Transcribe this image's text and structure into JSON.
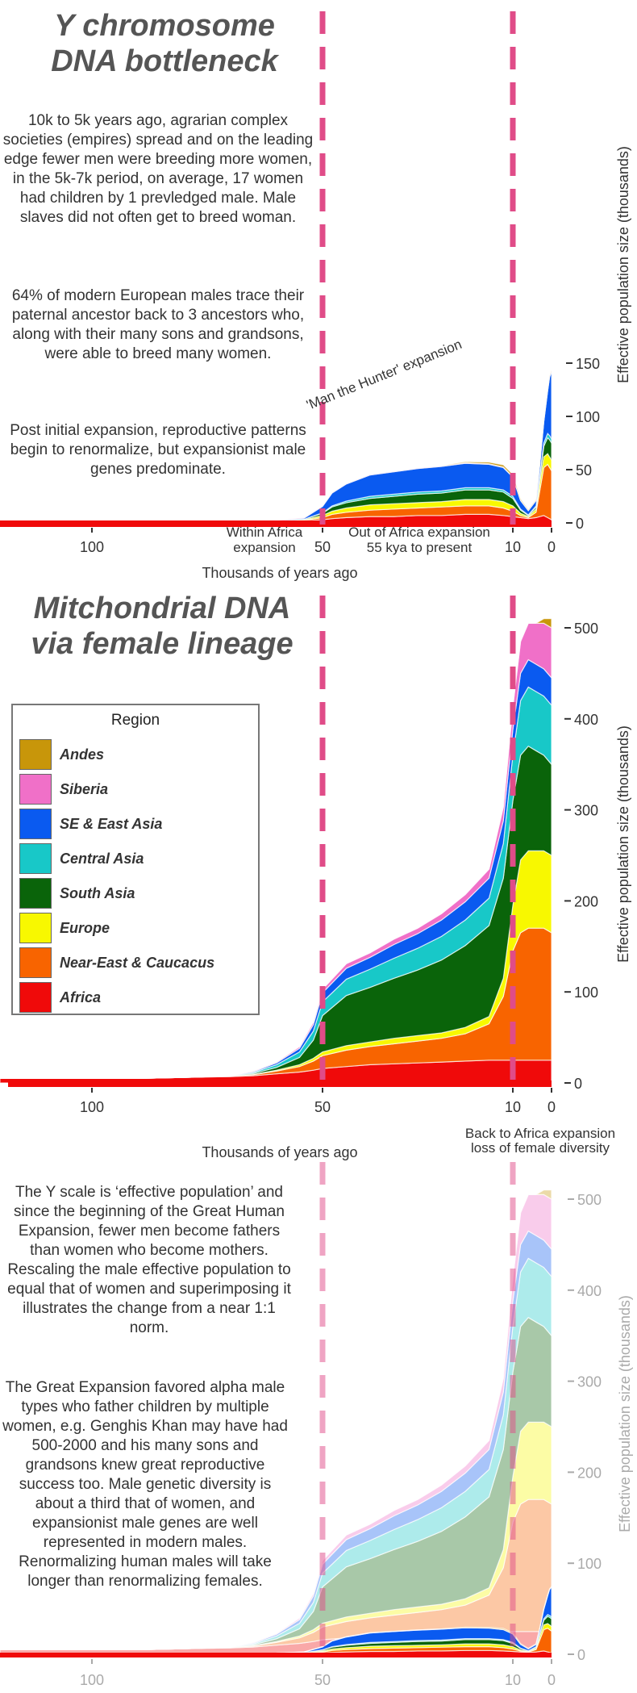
{
  "titles": {
    "y_chromosome": "Y chromosome\nDNA bottleneck",
    "mitochondrial": "Mitchondrial DNA\nvia female lineage"
  },
  "paragraphs": {
    "p1": "10k to 5k years ago, agrarian complex societies (empires) spread and on the leading edge fewer men were breeding more women, in the 5k-7k period, on average, 17 women had children by 1 prevledged male. Male slaves did not often get to breed woman.",
    "p2": "64% of modern European males trace their paternal ancestor back to 3 ancestors who, along with their many sons and grandsons, were able to breed many women.",
    "p3": "Post initial expansion, reproductive patterns begin to renormalize, but expansionist male genes predominate.",
    "p4": "The Y scale is ‘effective population’ and since the beginning of the Great Human Expansion, fewer men become fathers than women who become mothers. Rescaling the male effective population to equal that of women and superimposing it illustrates the change from a near 1:1 norm.",
    "p5": "The Great Expansion favored alpha male types who father children by multiple women, e.g. Genghis Khan may have had 500-2000 and his many sons and grandsons knew great reproductive success too. Male genetic diversity is about a third that of women, and expansionist male genes are well represented in modern males. Renormalizing human males will take longer than renormalizing females."
  },
  "annotations": {
    "man_hunter": "'Man the Hunter' expansion",
    "within_africa": "Within Africa\nexpansion",
    "out_of_africa": "Out of Africa expansion\n55 kya to present",
    "back_to_africa": "Back to Africa expansion\nloss of female diversity"
  },
  "legend": {
    "title": "Region",
    "items": [
      {
        "name": "Andes",
        "color": "#c8960a"
      },
      {
        "name": "Siberia",
        "color": "#f070c8"
      },
      {
        "name": "SE & East Asia",
        "color": "#0a5af0"
      },
      {
        "name": "Central Asia",
        "color": "#18c8c8"
      },
      {
        "name": "South Asia",
        "color": "#0a640a"
      },
      {
        "name": "Europe",
        "color": "#f8f800"
      },
      {
        "name": "Near-East & Caucacus",
        "color": "#f86400"
      },
      {
        "name": "Africa",
        "color": "#f00a0a"
      }
    ]
  },
  "chart_data": [
    {
      "type": "area",
      "stacked": true,
      "title": "Y chromosome DNA bottleneck",
      "xlabel": "Thousands of years ago",
      "ylabel": "Effective population size (thousands)",
      "x_ticks": [
        100,
        50,
        10,
        0
      ],
      "y_ticks": [
        0,
        50,
        100,
        150
      ],
      "xlim": [
        125,
        0
      ],
      "ylim": [
        0,
        150
      ],
      "x": [
        125,
        90,
        80,
        76,
        70,
        60,
        54,
        50,
        48,
        45,
        40,
        35,
        30,
        25,
        20,
        15,
        12,
        10,
        8,
        6,
        4,
        3,
        2,
        1,
        0.5,
        0
      ],
      "series": [
        {
          "name": "Africa",
          "values": [
            1,
            1,
            1,
            1,
            1,
            1.5,
            2,
            3,
            4,
            5,
            6,
            6,
            7,
            7,
            8,
            8,
            7,
            6,
            5,
            4,
            5,
            6,
            7,
            5,
            4,
            3
          ]
        },
        {
          "name": "Near-East & Caucacus",
          "values": [
            0,
            0,
            0,
            0,
            0,
            0,
            0.5,
            2,
            4,
            5,
            6,
            7,
            7,
            8,
            8,
            8,
            7,
            5,
            2,
            1,
            5,
            25,
            45,
            50,
            48,
            46
          ]
        },
        {
          "name": "Europe",
          "values": [
            0,
            0,
            0,
            0,
            0,
            0,
            0.5,
            2,
            3,
            4,
            5,
            5,
            5,
            5,
            6,
            6,
            6,
            5,
            2,
            1,
            3,
            8,
            10,
            10,
            10,
            10
          ]
        },
        {
          "name": "South Asia",
          "values": [
            0,
            0,
            0,
            0,
            0,
            0,
            0.5,
            2,
            4,
            5,
            6,
            7,
            8,
            8,
            9,
            9,
            9,
            7,
            3,
            1,
            2,
            5,
            10,
            15,
            16,
            16
          ]
        },
        {
          "name": "Central Asia",
          "values": [
            0,
            0,
            0,
            0,
            0,
            0,
            0,
            0.5,
            1,
            1.5,
            2,
            2,
            2,
            2,
            2,
            2,
            2,
            2,
            1,
            0.5,
            1,
            2,
            3,
            4,
            4,
            4
          ]
        },
        {
          "name": "SE & East Asia",
          "values": [
            0,
            0,
            0,
            0,
            0,
            0,
            1,
            6,
            12,
            16,
            20,
            21,
            22,
            23,
            23,
            22,
            21,
            18,
            8,
            4,
            5,
            10,
            20,
            40,
            55,
            63
          ]
        },
        {
          "name": "Siberia",
          "values": [
            0,
            0,
            0,
            1,
            1,
            1,
            0.5,
            0.5,
            0.5,
            0.5,
            0.5,
            0.5,
            0.5,
            0.5,
            0.5,
            0.5,
            0.5,
            0.5,
            0.5,
            0.5,
            0.5,
            0.5,
            0.5,
            0.5,
            0.5,
            0.5
          ]
        },
        {
          "name": "Andes",
          "values": [
            0,
            0,
            0,
            0,
            0,
            0,
            0,
            0,
            0,
            0,
            0,
            0,
            0,
            0,
            1,
            1.5,
            2,
            2,
            1,
            0.5,
            0.5,
            0.5,
            0.5,
            0.5,
            0.5,
            0.5
          ]
        }
      ]
    },
    {
      "type": "area",
      "stacked": true,
      "title": "Mitchondrial DNA via female lineage",
      "xlabel": "Thousands of years ago",
      "ylabel": "Effective population size (thousands)",
      "x_ticks": [
        100,
        50,
        10,
        0
      ],
      "y_ticks": [
        0,
        100,
        200,
        300,
        400,
        500
      ],
      "xlim": [
        125,
        0
      ],
      "ylim": [
        0,
        500
      ],
      "x": [
        125,
        90,
        80,
        70,
        65,
        60,
        55,
        52,
        50,
        45,
        40,
        35,
        30,
        25,
        20,
        15,
        12,
        10,
        8,
        6,
        4,
        2,
        0
      ],
      "series": [
        {
          "name": "Africa",
          "values": [
            5,
            5,
            6,
            7,
            8,
            10,
            12,
            14,
            16,
            18,
            20,
            21,
            22,
            23,
            24,
            25,
            25,
            25,
            25,
            25,
            25,
            25,
            25
          ]
        },
        {
          "name": "Near-East & Caucacus",
          "values": [
            0,
            0,
            0,
            0.5,
            1,
            3,
            6,
            10,
            14,
            18,
            20,
            22,
            24,
            26,
            30,
            40,
            70,
            120,
            140,
            145,
            145,
            145,
            140
          ]
        },
        {
          "name": "Europe",
          "values": [
            0,
            0,
            0,
            0,
            0.5,
            1,
            2,
            3,
            4,
            5,
            5,
            6,
            6,
            6,
            7,
            8,
            20,
            50,
            80,
            85,
            85,
            85,
            85
          ]
        },
        {
          "name": "South Asia",
          "values": [
            0,
            0,
            0,
            0,
            1,
            3,
            8,
            20,
            40,
            55,
            60,
            66,
            72,
            80,
            90,
            100,
            110,
            115,
            115,
            115,
            110,
            105,
            100
          ]
        },
        {
          "name": "Central Asia",
          "values": [
            0,
            0,
            0,
            0,
            1,
            3,
            6,
            10,
            15,
            18,
            20,
            22,
            24,
            26,
            28,
            30,
            38,
            50,
            60,
            65,
            65,
            65,
            65
          ]
        },
        {
          "name": "SE & East Asia",
          "values": [
            0,
            0,
            0,
            0,
            1,
            2,
            4,
            7,
            10,
            12,
            13,
            15,
            16,
            18,
            20,
            22,
            25,
            28,
            30,
            30,
            30,
            30,
            30
          ]
        },
        {
          "name": "Siberia",
          "values": [
            0,
            0,
            0,
            0,
            0.5,
            1,
            2,
            3,
            4,
            5,
            5,
            6,
            6,
            7,
            8,
            10,
            15,
            25,
            35,
            40,
            45,
            50,
            55
          ]
        },
        {
          "name": "Andes",
          "values": [
            0,
            0,
            0,
            0,
            0,
            0,
            0,
            0,
            0,
            0,
            0,
            0,
            0,
            0,
            0,
            0,
            0,
            0,
            0,
            0,
            0,
            5,
            10
          ]
        }
      ]
    },
    {
      "type": "area",
      "stacked": true,
      "title": "",
      "xlabel": "",
      "ylabel": "Effective population size (thousands)",
      "x_ticks": [
        100,
        50,
        10,
        0
      ],
      "y_ticks": [
        0,
        100,
        200,
        300,
        400,
        500
      ],
      "xlim": [
        125,
        0
      ],
      "ylim": [
        0,
        500
      ],
      "note": "Superimposition of the Y chromosome chart rescaled over the faded mitochondrial chart"
    }
  ]
}
